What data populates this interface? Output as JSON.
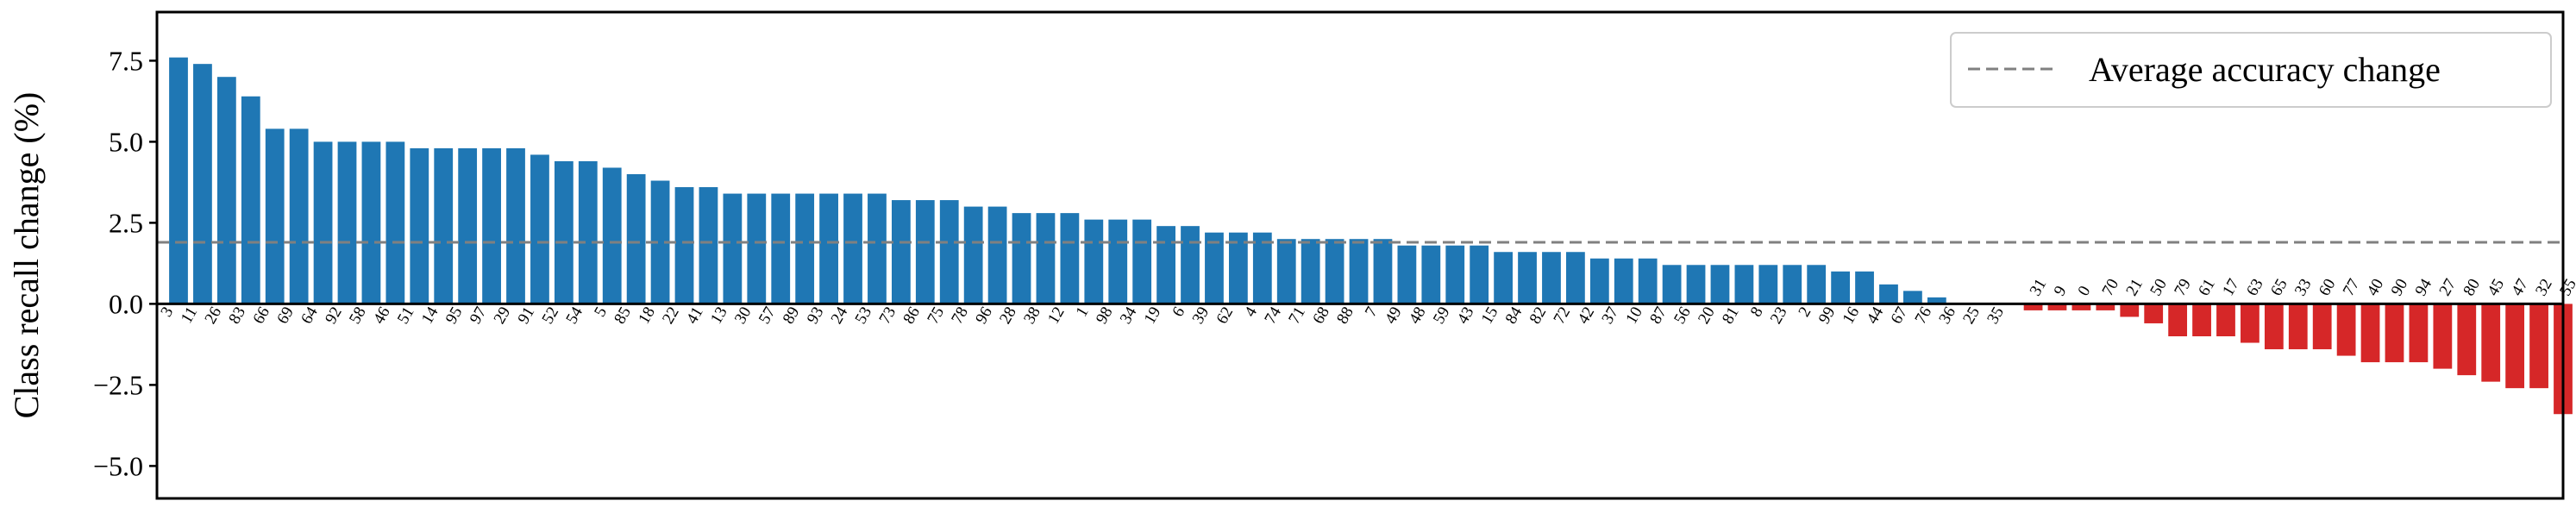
{
  "chart_data": {
    "type": "bar",
    "ylabel": "Class recall change (%)",
    "ylim": [
      -6.0,
      9.0
    ],
    "yticks": [
      -5.0,
      -2.5,
      0.0,
      2.5,
      5.0,
      7.5
    ],
    "ytick_labels": [
      "−5.0",
      "−2.5",
      "0.0",
      "2.5",
      "5.0",
      "7.5"
    ],
    "grid": false,
    "legend_position": "top-right",
    "reference_line": {
      "label": "Average accuracy change",
      "value": 1.9,
      "style": "dashed",
      "color": "#808080"
    },
    "positive_color": "#1f77b4",
    "negative_color": "#d62728",
    "categories": [
      "3",
      "11",
      "26",
      "83",
      "66",
      "69",
      "64",
      "92",
      "58",
      "46",
      "51",
      "14",
      "95",
      "97",
      "29",
      "91",
      "52",
      "54",
      "5",
      "85",
      "18",
      "22",
      "41",
      "13",
      "30",
      "57",
      "89",
      "93",
      "24",
      "53",
      "73",
      "86",
      "75",
      "78",
      "96",
      "28",
      "38",
      "12",
      "1",
      "98",
      "34",
      "19",
      "6",
      "39",
      "62",
      "4",
      "74",
      "71",
      "68",
      "88",
      "7",
      "49",
      "48",
      "59",
      "43",
      "15",
      "84",
      "82",
      "72",
      "42",
      "37",
      "10",
      "87",
      "56",
      "20",
      "81",
      "8",
      "23",
      "2",
      "99",
      "16",
      "44",
      "67",
      "76",
      "36",
      "25",
      "35",
      "31",
      "9",
      "0",
      "70",
      "21",
      "50",
      "79",
      "61",
      "17",
      "63",
      "65",
      "33",
      "60",
      "77",
      "40",
      "90",
      "94",
      "27",
      "80",
      "45",
      "47",
      "32",
      "55"
    ],
    "values": [
      7.6,
      7.4,
      7.0,
      6.4,
      5.4,
      5.4,
      5.0,
      5.0,
      5.0,
      5.0,
      4.8,
      4.8,
      4.8,
      4.8,
      4.8,
      4.6,
      4.4,
      4.4,
      4.2,
      4.0,
      3.8,
      3.6,
      3.6,
      3.4,
      3.4,
      3.4,
      3.4,
      3.4,
      3.4,
      3.4,
      3.2,
      3.2,
      3.2,
      3.0,
      3.0,
      2.8,
      2.8,
      2.8,
      2.6,
      2.6,
      2.6,
      2.4,
      2.4,
      2.2,
      2.2,
      2.2,
      2.0,
      2.0,
      2.0,
      2.0,
      2.0,
      1.8,
      1.8,
      1.8,
      1.8,
      1.6,
      1.6,
      1.6,
      1.6,
      1.4,
      1.4,
      1.4,
      1.2,
      1.2,
      1.2,
      1.2,
      1.2,
      1.2,
      1.2,
      1.0,
      1.0,
      0.6,
      0.4,
      0.2,
      0.0,
      0.0,
      0.0,
      -0.2,
      -0.2,
      -0.2,
      -0.2,
      -0.4,
      -0.6,
      -1.0,
      -1.0,
      -1.0,
      -1.2,
      -1.4,
      -1.4,
      -1.4,
      -1.6,
      -1.8,
      -1.8,
      -1.8,
      -2.0,
      -2.2,
      -2.4,
      -2.6,
      -2.6,
      -3.4
    ]
  }
}
